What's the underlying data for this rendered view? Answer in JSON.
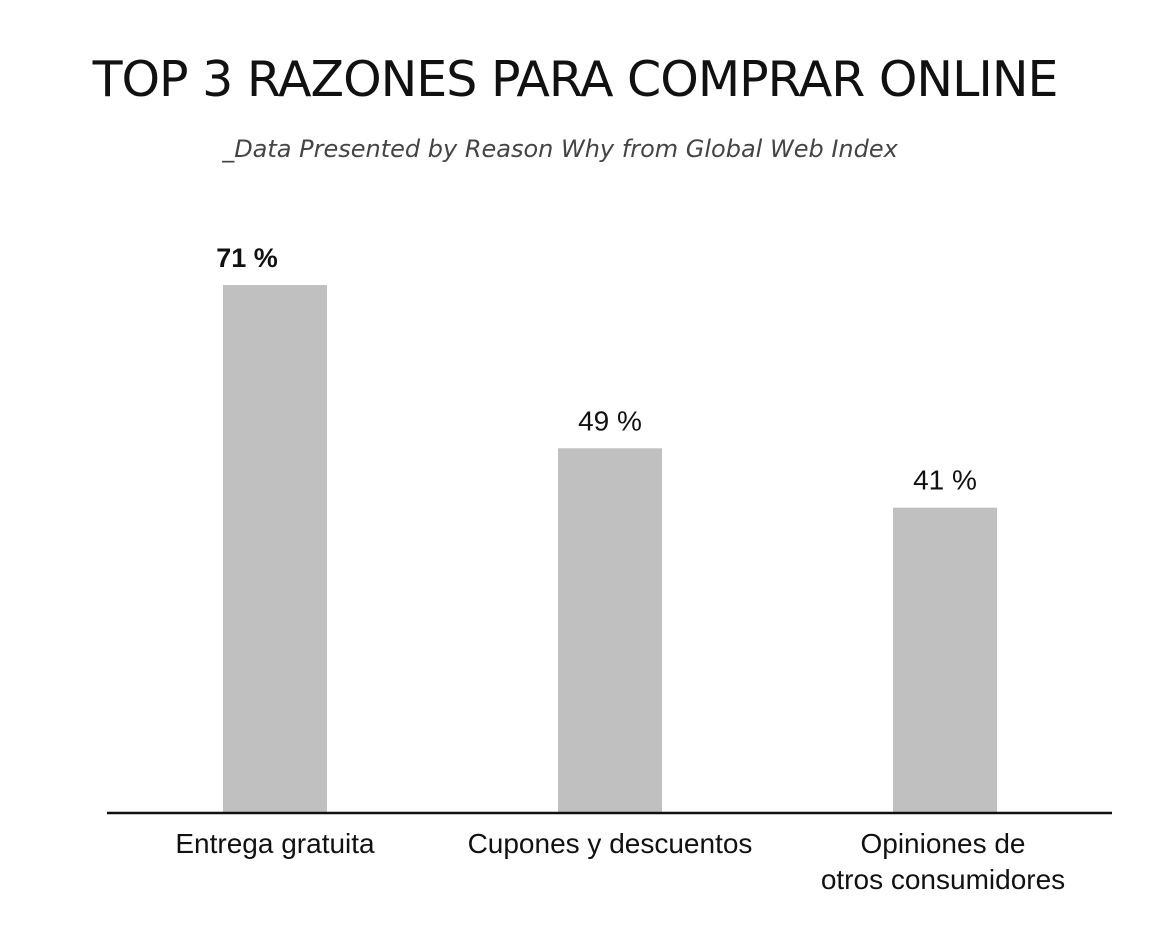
{
  "title": "TOP 3 RAZONES PARA COMPRAR ONLINE",
  "subtitle": "_Data Presented by Reason Why from Global Web Index",
  "colors": {
    "bar": "#c0c0c0",
    "highlight_label": "#e6249a",
    "axis": "#111111"
  },
  "chart_data": {
    "type": "bar",
    "title": "TOP 3 RAZONES PARA COMPRAR ONLINE",
    "subtitle": "_Data Presented by Reason Why from Global Web Index",
    "categories": [
      [
        "Entrega gratuita"
      ],
      [
        "Cupones y descuentos"
      ],
      [
        "Opiniones de",
        "otros consumidores"
      ]
    ],
    "values": [
      71,
      49,
      41
    ],
    "value_labels": [
      "71 %",
      "49 %",
      "41 %"
    ],
    "highlight_index": 0,
    "unit": "%",
    "xlabel": "",
    "ylabel": "",
    "ylim": [
      0,
      71
    ],
    "grid": false,
    "legend": "none"
  }
}
